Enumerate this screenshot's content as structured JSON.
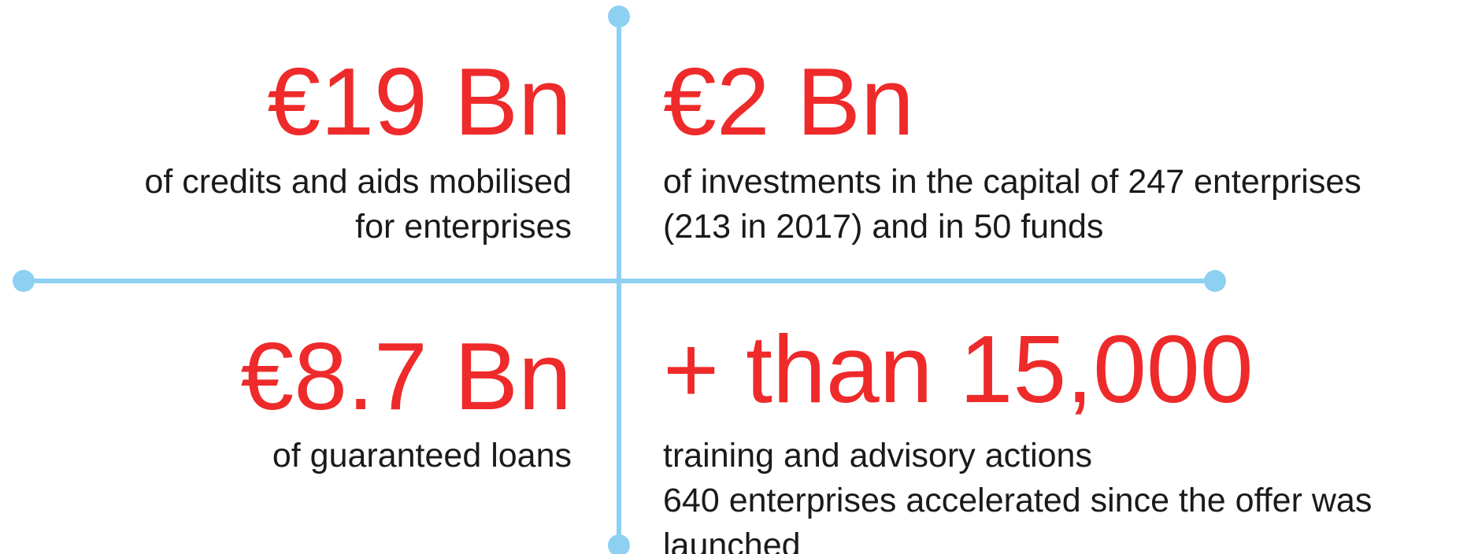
{
  "quadrants": [
    {
      "figure": "€19 Bn",
      "lines": [
        "of credits and aids mobilised",
        "for enterprises"
      ]
    },
    {
      "figure": "€2 Bn",
      "lines": [
        "of investments in the capital of 247 enterprises",
        "(213 in 2017) and in 50 funds"
      ]
    },
    {
      "figure": "€8.7 Bn",
      "lines": [
        "of guaranteed loans"
      ]
    },
    {
      "figure": "+ than 15,000",
      "lines": [
        "training and advisory actions",
        "640 enterprises accelerated since the offer was",
        "launched"
      ]
    }
  ]
}
